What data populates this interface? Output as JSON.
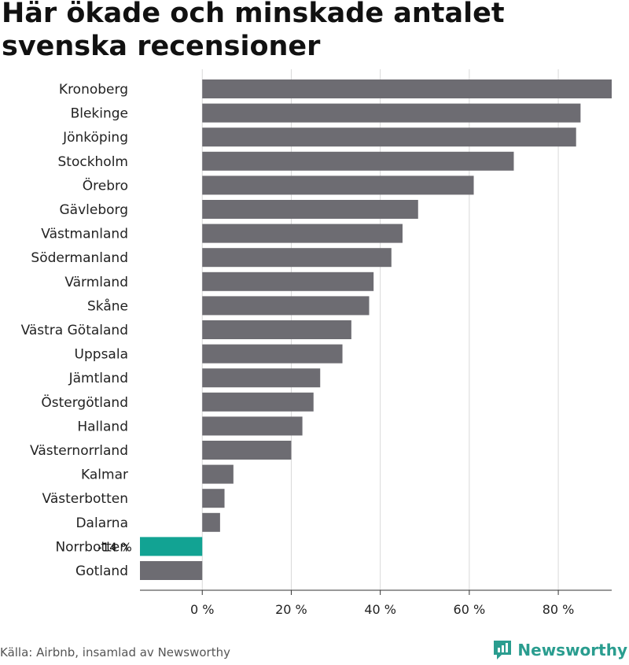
{
  "title": "Här ökade och minskade antalet svenska recensioner",
  "source": "Källa: Airbnb, insamlad av Newsworthy",
  "brand": "Newsworthy",
  "colors": {
    "bar": "#6d6c72",
    "highlight": "#12a393",
    "grid": "#d9d9d9",
    "axis": "#333333",
    "brand": "#2a9d8f"
  },
  "chart_data": {
    "type": "bar",
    "orientation": "horizontal",
    "categories": [
      "Kronoberg",
      "Blekinge",
      "Jönköping",
      "Stockholm",
      "Örebro",
      "Gävleborg",
      "Västmanland",
      "Södermanland",
      "Värmland",
      "Skåne",
      "Västra Götaland",
      "Uppsala",
      "Jämtland",
      "Östergötland",
      "Halland",
      "Västernorrland",
      "Kalmar",
      "Västerbotten",
      "Dalarna",
      "Norrbotten",
      "Gotland"
    ],
    "values": [
      92,
      85,
      84,
      70,
      61,
      48.5,
      45,
      42.5,
      38.5,
      37.5,
      33.5,
      31.5,
      26.5,
      25,
      22.5,
      20,
      7,
      5,
      4,
      -14,
      -14
    ],
    "highlight": "Norrbotten",
    "annotation": {
      "category": "Norrbotten",
      "text": "-14 %"
    },
    "xlim": [
      -14,
      92
    ],
    "xticks": [
      0,
      20,
      40,
      60,
      80
    ],
    "xtick_labels": [
      "0 %",
      "20 %",
      "40 %",
      "60 %",
      "80 %"
    ],
    "grid": true
  }
}
